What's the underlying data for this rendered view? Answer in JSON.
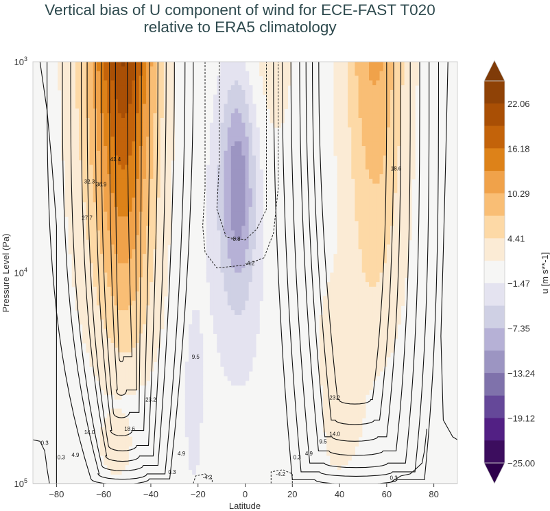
{
  "title": {
    "line1": "Vertical bias of U component of wind for ECE-FAST T020",
    "line2": "relative to ERA5 climatology"
  },
  "chart_data": {
    "type": "heatmap",
    "subtype": "filled-contour with line-contour overlay",
    "title": "Vertical bias of U component of wind for ECE-FAST T020 relative to ERA5 climatology",
    "xlabel": "Latitude",
    "ylabel": "Pressure Level (Pa)",
    "xlim": [
      -90,
      90
    ],
    "ylim": [
      100000,
      1000
    ],
    "yscale": "log",
    "y_inverted": true,
    "x_ticks": [
      -80,
      -60,
      -40,
      -20,
      0,
      20,
      40,
      60,
      80
    ],
    "x_tick_labels": [
      "−80",
      "−60",
      "−40",
      "−20",
      "0",
      "20",
      "40",
      "60",
      "80"
    ],
    "y_ticks": [
      1000,
      10000,
      100000
    ],
    "y_tick_labels": [
      {
        "base": "10",
        "exp": "3"
      },
      {
        "base": "10",
        "exp": "4"
      },
      {
        "base": "10",
        "exp": "5"
      }
    ],
    "colorbar": {
      "label": "u [m s**-1]",
      "tick_labels": [
        "22.06",
        "16.18",
        "10.29",
        "4.41",
        "−1.47",
        "−7.35",
        "−13.24",
        "−19.12",
        "−25.00"
      ],
      "tick_values": [
        22.06,
        16.18,
        10.29,
        4.41,
        -1.47,
        -7.35,
        -13.24,
        -19.12,
        -25.0
      ],
      "extend": "both",
      "levels_top_to_bottom_colors": [
        "#7f3b08",
        "#8f4206",
        "#a94f05",
        "#c3630a",
        "#dd8219",
        "#f0a24a",
        "#f9be75",
        "#fdd9a6",
        "#fbebd5",
        "#f6f6f5",
        "#e4e3f0",
        "#cfd0e4",
        "#b6b1d6",
        "#9c95c2",
        "#7f72ab",
        "#654899",
        "#522084",
        "#3c0d5e",
        "#2d004b"
      ]
    },
    "contour_line_labels": [
      {
        "value": "41.4",
        "lat": -55,
        "p": 2900
      },
      {
        "value": "36.9",
        "lat": -61,
        "p": 3800
      },
      {
        "value": "32.3",
        "lat": -66,
        "p": 3700
      },
      {
        "value": "27.7",
        "lat": -67,
        "p": 5500
      },
      {
        "value": "-8.8",
        "lat": -4,
        "p": 6900
      },
      {
        "value": "-4.2",
        "lat": 2,
        "p": 9000
      },
      {
        "value": "9.5",
        "lat": -21,
        "p": 25000
      },
      {
        "value": "23.2",
        "lat": -40,
        "p": 40000
      },
      {
        "value": "18.6",
        "lat": -49,
        "p": 55000
      },
      {
        "value": "14.0",
        "lat": -66,
        "p": 57000
      },
      {
        "value": "4.9",
        "lat": -72,
        "p": 73000
      },
      {
        "value": "0.3",
        "lat": -85,
        "p": 64000
      },
      {
        "value": "0.3",
        "lat": -78,
        "p": 75000
      },
      {
        "value": "4.9",
        "lat": -27,
        "p": 72000
      },
      {
        "value": "0.3",
        "lat": -31,
        "p": 88000
      },
      {
        "value": "-4.2",
        "lat": -16,
        "p": 93000
      },
      {
        "value": "23.2",
        "lat": 38,
        "p": 39000
      },
      {
        "value": "14.0",
        "lat": 38,
        "p": 58000
      },
      {
        "value": "9.5",
        "lat": 33,
        "p": 63000
      },
      {
        "value": "4.9",
        "lat": 27,
        "p": 72000
      },
      {
        "value": "0.3",
        "lat": 22,
        "p": 75000
      },
      {
        "value": "-4.2",
        "lat": 15,
        "p": 90000
      },
      {
        "value": "0.3",
        "lat": 63,
        "p": 94000
      },
      {
        "value": "18.6",
        "lat": 64,
        "p": 3200
      }
    ],
    "features": [
      {
        "description": "Strong positive bias (westerly) core in SH mid-latitudes",
        "lat_range": [
          -65,
          -40
        ],
        "p_range": [
          1000,
          30000
        ],
        "max_bias_approx": 20
      },
      {
        "description": "Positive bias core in NH mid-latitudes",
        "lat_range": [
          40,
          65
        ],
        "p_range": [
          1000,
          30000
        ],
        "max_bias_approx": 12
      },
      {
        "description": "Negative bias (easterly) over equatorial stratosphere",
        "lat_range": [
          -15,
          10
        ],
        "p_range": [
          1000,
          15000
        ],
        "min_bias_approx": -9
      }
    ]
  },
  "axes": {
    "xlabel": "Latitude",
    "ylabel": "Pressure Level (Pa)"
  },
  "colorbar": {
    "label": "u [m s**-1]",
    "ticks": [
      "22.06",
      "16.18",
      "10.29",
      "4.41",
      "−1.47",
      "−7.35",
      "−13.24",
      "−19.12",
      "−25.00"
    ]
  }
}
